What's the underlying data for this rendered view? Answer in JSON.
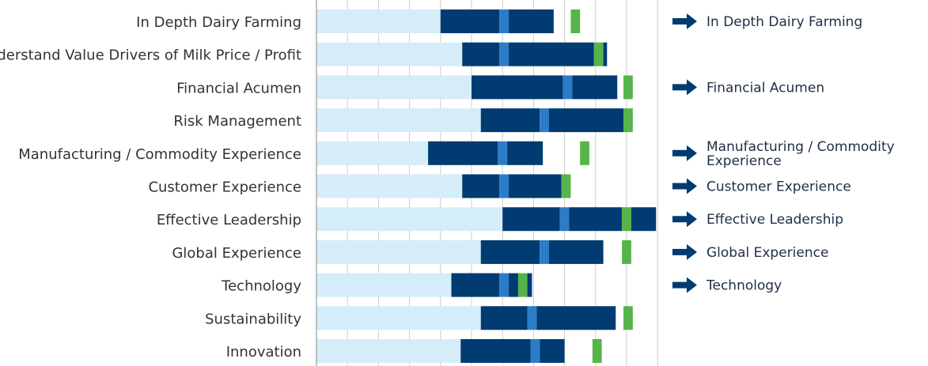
{
  "chart_data": {
    "type": "bar",
    "orientation": "horizontal",
    "stacked": true,
    "categories": [
      "In Depth Dairy Farming",
      "Understand Value Drivers of Milk Price / Profit",
      "Financial Acumen",
      "Risk Management",
      "Manufacturing / Commodity Experience",
      "Customer Experience",
      "Effective Leadership",
      "Global Experience",
      "Technology",
      "Sustainability",
      "Innovation"
    ],
    "xlim": [
      0,
      11
    ],
    "grid": true,
    "segments": [
      {
        "light": 4.0,
        "dark1": 1.9,
        "blue": 0.3,
        "dark2": 1.45,
        "green": 0.3,
        "green_at": 8.2
      },
      {
        "light": 4.7,
        "dark1": 1.2,
        "blue": 0.3,
        "dark2": 2.75,
        "green": 0.3,
        "green_at": 8.95,
        "dark_tail": 0.12
      },
      {
        "light": 5.0,
        "dark1": 2.95,
        "blue": 0.3,
        "dark2": 1.45,
        "green": 0.3,
        "green_at": 9.9
      },
      {
        "light": 5.3,
        "dark1": 1.9,
        "blue": 0.3,
        "dark2": 2.4,
        "green": 0.3,
        "green_at": 9.9
      },
      {
        "light": 3.6,
        "dark1": 2.25,
        "blue": 0.3,
        "dark2": 1.15,
        "green": 0.3,
        "green_at": 8.5
      },
      {
        "light": 4.7,
        "dark1": 1.2,
        "blue": 0.3,
        "dark2": 1.7,
        "green": 0.3,
        "green_at": 7.9
      },
      {
        "light": 6.0,
        "dark1": 1.85,
        "blue": 0.3,
        "dark2": 1.7,
        "green": 0.3,
        "green_at": 9.85,
        "dark_tail": 0.8
      },
      {
        "light": 5.3,
        "dark1": 1.9,
        "blue": 0.3,
        "dark2": 1.75,
        "green": 0.3,
        "green_at": 9.85
      },
      {
        "light": 4.35,
        "dark1": 1.55,
        "blue": 0.3,
        "dark2": 0.35,
        "green": 0.3,
        "green_at": 6.5,
        "dark_tail": 0.15
      },
      {
        "light": 5.3,
        "dark1": 1.5,
        "blue": 0.3,
        "dark2": 2.55,
        "green": 0.3,
        "green_at": 9.9
      },
      {
        "light": 4.65,
        "dark1": 2.25,
        "blue": 0.3,
        "dark2": 0.8,
        "green": 0.3,
        "green_at": 8.9
      }
    ],
    "legend": {
      "placement": "right",
      "entries": [
        {
          "row": 0,
          "lines": [
            "In Depth Dairy Farming"
          ]
        },
        {
          "row": 2,
          "lines": [
            "Financial Acumen"
          ]
        },
        {
          "row": 4,
          "lines": [
            "Manufacturing / Commodity",
            "Experience"
          ]
        },
        {
          "row": 5,
          "lines": [
            "Customer Experience"
          ]
        },
        {
          "row": 6,
          "lines": [
            "Effective Leadership"
          ]
        },
        {
          "row": 7,
          "lines": [
            "Global Experience"
          ]
        },
        {
          "row": 8,
          "lines": [
            "Technology"
          ]
        }
      ]
    },
    "colors": {
      "light": "#d4edf9",
      "dark": "#003b71",
      "blue": "#2c7dc7",
      "green": "#56b44a",
      "grid": "#cccccc",
      "axis": "#999999",
      "arrow": "#003b71",
      "label": "#333333"
    }
  }
}
